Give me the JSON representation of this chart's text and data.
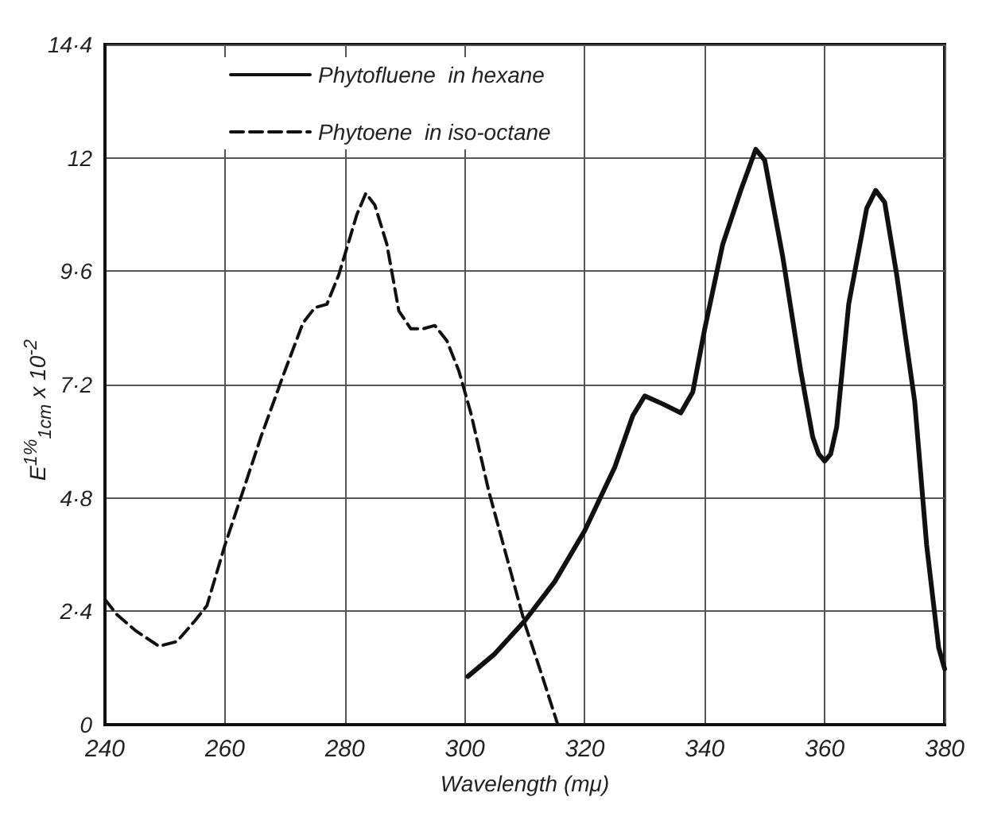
{
  "chart_data": {
    "type": "line",
    "xlabel": "Wavelength (mμ)",
    "ylabel": "E$^{1%}$$_{1cm}$ x 10$^{-2}$",
    "xlim": [
      240,
      380
    ],
    "xticks": [
      240,
      260,
      280,
      300,
      320,
      340,
      360,
      380
    ],
    "ylim": [
      0,
      14.4
    ],
    "yticks": [
      0,
      {
        "value": 2.4,
        "label": "2·4"
      },
      {
        "value": 4.8,
        "label": "4·8"
      },
      {
        "value": 7.2,
        "label": "7·2"
      },
      {
        "value": 9.6,
        "label": "9·6"
      },
      12,
      {
        "value": 14.4,
        "label": "14·4"
      }
    ],
    "grid": true,
    "legend": "top left",
    "marker": "none",
    "series": [
      {
        "name": "Phytofluene  in hexane",
        "color": "#111111",
        "line_style": "solid",
        "x": [
          300.5,
          305,
          310,
          315,
          320,
          325,
          328,
          330,
          333,
          336,
          338,
          340,
          343,
          346,
          348.5,
          350,
          353,
          356,
          358,
          359,
          360,
          361,
          362,
          364,
          367,
          368.5,
          370,
          372,
          375,
          377,
          379,
          380
        ],
        "values": [
          1.02,
          1.5,
          2.2,
          3.03,
          4.11,
          5.45,
          6.54,
          6.96,
          6.79,
          6.6,
          7.04,
          8.38,
          10.17,
          11.31,
          12.18,
          11.95,
          9.91,
          7.49,
          6.09,
          5.73,
          5.58,
          5.73,
          6.3,
          8.9,
          10.93,
          11.31,
          11.06,
          9.53,
          6.85,
          3.8,
          1.63,
          1.18
        ]
      },
      {
        "name": "Phytoene  in iso-octane",
        "color": "#111111",
        "line_style": "dashed",
        "x": [
          240,
          242,
          245,
          249,
          252,
          255,
          257,
          260,
          263,
          266,
          270,
          273,
          275,
          277,
          279,
          282,
          283.5,
          285,
          287,
          289,
          291,
          293,
          295,
          297,
          299,
          301,
          304,
          307,
          310,
          313,
          315.5
        ],
        "values": [
          2.65,
          2.33,
          2.0,
          1.66,
          1.76,
          2.2,
          2.52,
          3.8,
          4.94,
          6.09,
          7.49,
          8.5,
          8.83,
          8.9,
          9.53,
          10.8,
          11.25,
          11.0,
          10.17,
          8.76,
          8.38,
          8.38,
          8.45,
          8.13,
          7.49,
          6.6,
          4.94,
          3.54,
          2.14,
          0.99,
          0
        ]
      }
    ]
  }
}
